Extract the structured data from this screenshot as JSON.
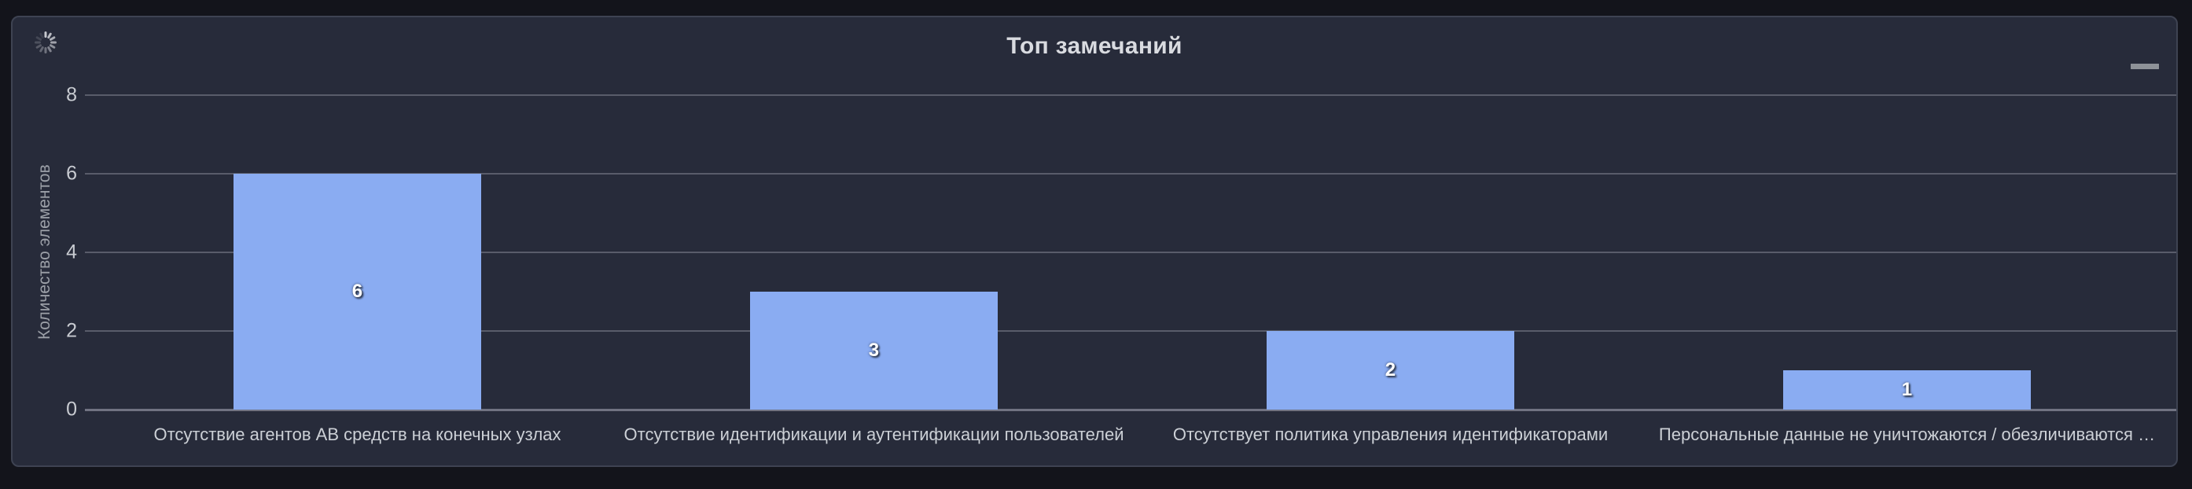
{
  "panel": {
    "title": "Топ замечаний",
    "menu_icon": "hamburger-menu",
    "loading": true
  },
  "colors": {
    "page_background": "#13141b",
    "panel_background": "#272b3a",
    "panel_border": "#3e4352",
    "bar_fill": "#8aacf2",
    "grid_line": "rgba(204,204,220,0.30)",
    "axis_text": "#c8cbd1",
    "title_text": "#d9dbe0"
  },
  "chart_data": {
    "type": "bar",
    "title": "Топ замечаний",
    "categories": [
      "Отсутствие агентов АВ средств на конечных узлах",
      "Отсутствие идентификации и аутентификации пользователей",
      "Отсутствует политика управления идентификаторами",
      "Персональные данные не уничтожаются / обезличиваются …"
    ],
    "values": [
      6,
      3,
      2,
      1
    ],
    "bar_value_labels": [
      "6",
      "3",
      "2",
      "1"
    ],
    "xlabel": "",
    "ylabel": "Количество элементов",
    "ylim": [
      0,
      8
    ],
    "yticks": [
      0,
      2,
      4,
      6,
      8
    ],
    "grid": true,
    "legend_position": "none",
    "value_label_position": "center-of-bar"
  }
}
